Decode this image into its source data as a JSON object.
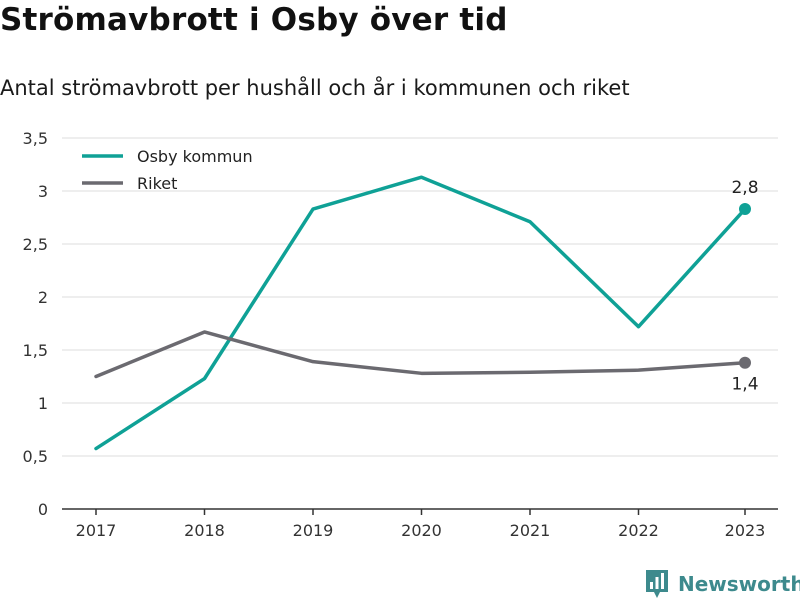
{
  "title": "Strömavbrott i Osby över tid",
  "subtitle": "Antal strömavbrott per hushåll och år i kommunen och riket",
  "brand": {
    "name": "Newsworthy",
    "icon": "newsworthy-logo-icon",
    "color": "#3d8a8d"
  },
  "chart_data": {
    "type": "line",
    "title": "Strömavbrott i Osby över tid",
    "subtitle": "Antal strömavbrott per hushåll och år i kommunen och riket",
    "xlabel": "",
    "ylabel": "",
    "categories": [
      "2017",
      "2018",
      "2019",
      "2020",
      "2021",
      "2022",
      "2023"
    ],
    "ylim": [
      0,
      3.5
    ],
    "yticks": [
      0,
      0.5,
      1,
      1.5,
      2,
      2.5,
      3,
      3.5
    ],
    "ytick_labels": [
      "0",
      "0,5",
      "1",
      "1,5",
      "2",
      "2,5",
      "3",
      "3,5"
    ],
    "grid": true,
    "legend_position": "top-left",
    "series": [
      {
        "name": "Osby kommun",
        "color": "#0fa196",
        "values": [
          0.57,
          1.23,
          2.83,
          3.13,
          2.71,
          1.72,
          2.83
        ],
        "end_label": "2,8",
        "end_label_position": "above"
      },
      {
        "name": "Riket",
        "color": "#6b6a70",
        "values": [
          1.25,
          1.67,
          1.39,
          1.28,
          1.29,
          1.31,
          1.38
        ],
        "end_label": "1,4",
        "end_label_position": "below"
      }
    ]
  }
}
